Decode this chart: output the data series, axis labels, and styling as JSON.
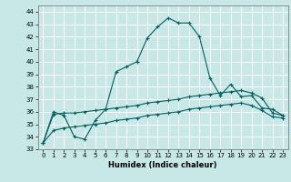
{
  "title": "",
  "xlabel": "Humidex (Indice chaleur)",
  "background_color": "#c8e8e8",
  "grid_color": "#ffffff",
  "line_color": "#006060",
  "xlim": [
    -0.5,
    23.5
  ],
  "ylim": [
    33,
    44.5
  ],
  "xticks": [
    0,
    1,
    2,
    3,
    4,
    5,
    6,
    7,
    8,
    9,
    10,
    11,
    12,
    13,
    14,
    15,
    16,
    17,
    18,
    19,
    20,
    21,
    22,
    23
  ],
  "yticks": [
    33,
    34,
    35,
    36,
    37,
    38,
    39,
    40,
    41,
    42,
    43,
    44
  ],
  "curve1_x": [
    0,
    1,
    2,
    3,
    4,
    5,
    6,
    7,
    8,
    9,
    10,
    11,
    12,
    13,
    14,
    15,
    16,
    17,
    18,
    19,
    20,
    21,
    22,
    23
  ],
  "curve1_y": [
    33.5,
    36.0,
    35.7,
    34.0,
    33.8,
    35.3,
    36.2,
    39.2,
    39.6,
    40.0,
    41.9,
    42.8,
    43.5,
    43.1,
    43.1,
    42.0,
    38.7,
    37.3,
    38.2,
    37.2,
    37.3,
    36.3,
    36.2,
    35.7
  ],
  "curve2_x": [
    0,
    1,
    2,
    3,
    4,
    5,
    6,
    7,
    8,
    9,
    10,
    11,
    12,
    13,
    14,
    15,
    16,
    17,
    18,
    19,
    20,
    21,
    22,
    23
  ],
  "curve2_y": [
    33.5,
    35.8,
    35.9,
    35.9,
    36.0,
    36.1,
    36.2,
    36.3,
    36.4,
    36.5,
    36.7,
    36.8,
    36.9,
    37.0,
    37.2,
    37.3,
    37.4,
    37.5,
    37.6,
    37.7,
    37.5,
    37.1,
    35.9,
    35.7
  ],
  "curve3_x": [
    0,
    1,
    2,
    3,
    4,
    5,
    6,
    7,
    8,
    9,
    10,
    11,
    12,
    13,
    14,
    15,
    16,
    17,
    18,
    19,
    20,
    21,
    22,
    23
  ],
  "curve3_y": [
    33.5,
    34.5,
    34.7,
    34.8,
    34.9,
    35.0,
    35.1,
    35.3,
    35.4,
    35.5,
    35.7,
    35.8,
    35.9,
    36.0,
    36.2,
    36.3,
    36.4,
    36.5,
    36.6,
    36.7,
    36.5,
    36.1,
    35.6,
    35.5
  ]
}
